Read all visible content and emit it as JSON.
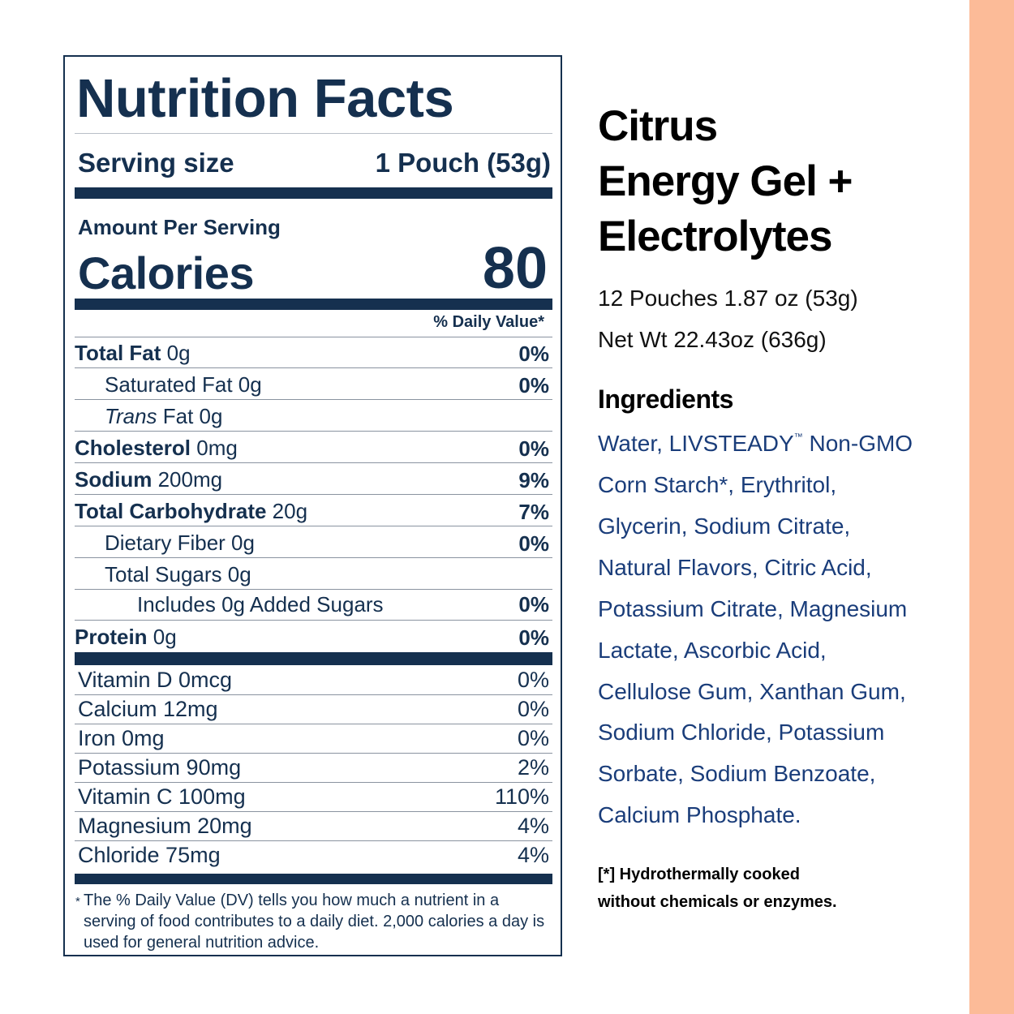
{
  "label": {
    "title": "Nutrition Facts",
    "serving_size_label": "Serving size",
    "serving_size_value": "1 Pouch (53g)",
    "amount_per_serving": "Amount Per Serving",
    "calories_label": "Calories",
    "calories_value": "80",
    "dv_header": "% Daily Value*",
    "nutrients": [
      {
        "bold": "Total Fat",
        "text": " 0g",
        "pct": "0%"
      },
      {
        "bold": "",
        "text": "Saturated Fat 0g",
        "pct": "0%"
      },
      {
        "italic": "Trans",
        "text": " Fat 0g",
        "pct": ""
      },
      {
        "bold": "Cholesterol",
        "text": " 0mg",
        "pct": "0%"
      },
      {
        "bold": "Sodium",
        "text": " 200mg",
        "pct": "9%"
      },
      {
        "bold": "Total Carbohydrate",
        "text": " 20g",
        "pct": "7%"
      },
      {
        "bold": "",
        "text": "Dietary Fiber 0g",
        "pct": "0%"
      },
      {
        "bold": "",
        "text": "Total Sugars 0g",
        "pct": ""
      },
      {
        "bold": "",
        "text": "Includes 0g Added Sugars",
        "pct": "0%"
      },
      {
        "bold": "Protein",
        "text": " 0g",
        "pct": "0%"
      }
    ],
    "vitamins": [
      {
        "name": "Vitamin D 0mcg",
        "pct": "0%"
      },
      {
        "name": "Calcium 12mg",
        "pct": "0%"
      },
      {
        "name": "Iron 0mg",
        "pct": "0%"
      },
      {
        "name": "Potassium 90mg",
        "pct": "2%"
      },
      {
        "name": "Vitamin C 100mg",
        "pct": "110%"
      },
      {
        "name": "Magnesium 20mg",
        "pct": "4%"
      },
      {
        "name": "Chloride 75mg",
        "pct": "4%"
      }
    ],
    "footnote_star": "*",
    "footnote": "The % Daily Value (DV) tells you how much a nutrient in a serving of food contributes to a daily diet. 2,000 calories a day is used for general nutrition advice."
  },
  "product": {
    "title_lines": [
      "Citrus",
      "Energy Gel +",
      "Electrolytes"
    ],
    "pouches": "12 Pouches 1.87 oz (53g)",
    "net_wt": "Net Wt 22.43oz (636g)",
    "ingredients_heading": "Ingredients",
    "ingredients_lines": [
      "Water, LIVSTEADY",
      "Corn Starch*, Erythritol,",
      "Glycerin, Sodium Citrate,",
      "Natural Flavors, Citric Acid,",
      "Potassium Citrate, Magnesium",
      "Lactate, Ascorbic Acid,",
      "Cellulose Gum, Xanthan Gum,",
      "Sodium Chloride, Potassium",
      "Sorbate, Sodium Benzoate,",
      "Calcium Phosphate."
    ],
    "trademark": "™",
    "first_line_tail": " Non-GMO",
    "note_lines": [
      "[*] Hydrothermally cooked",
      "without chemicals or enzymes."
    ]
  },
  "colors": {
    "label_navy": "#15304f",
    "ingredients_blue": "#1a3d7a",
    "accent_peach": "#fcbb98"
  }
}
